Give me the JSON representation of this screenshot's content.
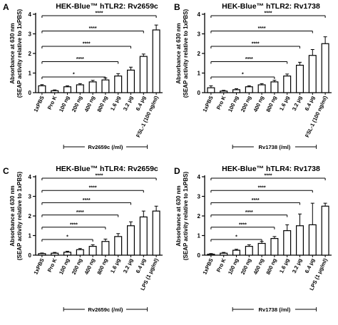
{
  "panel_letters": [
    "A",
    "B",
    "C",
    "D"
  ],
  "chart_data": [
    {
      "type": "bar",
      "title": "HEK-Blue™ hTLR2: Rv2659c",
      "ylabel_line1": "Absorbance at 630 nm",
      "ylabel_line2": "(SEAP activity relative to 1xPBS)",
      "ylim": [
        0,
        4
      ],
      "yticks": [
        0,
        1,
        2,
        3,
        4
      ],
      "categories": [
        "1xPBS",
        "Pro K",
        "100 ng",
        "200 ng",
        "400 ng",
        "800 ng",
        "1.6 μg",
        "3.2 μg",
        "6.4 μg",
        "FSL-1 (100 ng/ml)"
      ],
      "values": [
        0.35,
        0.1,
        0.3,
        0.4,
        0.55,
        0.65,
        0.85,
        1.15,
        1.85,
        3.2
      ],
      "errors": [
        0.06,
        0.04,
        0.05,
        0.06,
        0.08,
        0.1,
        0.12,
        0.15,
        0.12,
        0.25
      ],
      "group_label": "Rv2659c (/ml)",
      "group_range": [
        2,
        8
      ],
      "significance": [
        {
          "to": 5,
          "label": "*"
        },
        {
          "to": 6,
          "label": "****"
        },
        {
          "to": 7,
          "label": "****"
        },
        {
          "to": 8,
          "label": "****"
        },
        {
          "to": 9,
          "label": "****"
        }
      ]
    },
    {
      "type": "bar",
      "title": "HEK-Blue™ hTLR2: Rv1738",
      "ylabel_line1": "Absorbance at 630 nm",
      "ylabel_line2": "(SEAP activity relative to 1xPBS)",
      "ylim": [
        0,
        4
      ],
      "yticks": [
        0,
        1,
        2,
        3,
        4
      ],
      "categories": [
        "1xPBS",
        "Pro K",
        "100 ng",
        "200 ng",
        "400 ng",
        "800 ng",
        "1.6 μg",
        "3.2 μg",
        "6.4 μg",
        "FSL-1 (100 ng/ml)"
      ],
      "values": [
        0.25,
        0.08,
        0.15,
        0.3,
        0.4,
        0.55,
        0.85,
        1.4,
        1.9,
        2.5
      ],
      "errors": [
        0.1,
        0.04,
        0.05,
        0.05,
        0.06,
        0.08,
        0.1,
        0.15,
        0.3,
        0.35
      ],
      "group_label": "Rv1738 (/ml)",
      "group_range": [
        2,
        8
      ],
      "significance": [
        {
          "to": 5,
          "label": "*"
        },
        {
          "to": 6,
          "label": "****"
        },
        {
          "to": 7,
          "label": "****"
        },
        {
          "to": 8,
          "label": "****"
        },
        {
          "to": 9,
          "label": "****"
        }
      ]
    },
    {
      "type": "bar",
      "title": "HEK-Blue™ hTLR4: Rv2659c",
      "ylabel_line1": "Absorbance at 630 nm",
      "ylabel_line2": "(SEAP activity relative to 1xPBS)",
      "ylim": [
        0,
        4
      ],
      "yticks": [
        0,
        1,
        2,
        3,
        4
      ],
      "categories": [
        "1xPBS",
        "Pro K",
        "100 ng",
        "200 ng",
        "400 ng",
        "800 ng",
        "1.6 μg",
        "3.2 μg",
        "6.4 μg",
        "LPS (1 μg/ml)"
      ],
      "values": [
        0.08,
        0.1,
        0.15,
        0.28,
        0.45,
        0.7,
        0.95,
        1.5,
        1.95,
        2.25
      ],
      "errors": [
        0.03,
        0.04,
        0.05,
        0.06,
        0.08,
        0.12,
        0.15,
        0.2,
        0.3,
        0.25
      ],
      "group_label": "Rv2659c (/ml)",
      "group_range": [
        2,
        8
      ],
      "significance": [
        {
          "to": 4,
          "label": "*"
        },
        {
          "to": 5,
          "label": "****"
        },
        {
          "to": 6,
          "label": "****"
        },
        {
          "to": 7,
          "label": "****"
        },
        {
          "to": 8,
          "label": "****"
        },
        {
          "to": 9,
          "label": "****"
        }
      ]
    },
    {
      "type": "bar",
      "title": "HEK-Blue™ hTLR4: Rv1738",
      "ylabel_line1": "Absorbance at 630 nm",
      "ylabel_line2": "(SEAP activity relative to 1xPBS)",
      "ylim": [
        0,
        4
      ],
      "yticks": [
        0,
        1,
        2,
        3,
        4
      ],
      "categories": [
        "1xPBS",
        "Pro K",
        "100 ng",
        "200 ng",
        "400 ng",
        "800 ng",
        "1.6 μg",
        "3.2 μg",
        "6.4 μg",
        "LPS (1 μg/ml)"
      ],
      "values": [
        0.05,
        0.1,
        0.25,
        0.45,
        0.6,
        0.85,
        1.25,
        1.5,
        1.55,
        2.5
      ],
      "errors": [
        0.03,
        0.04,
        0.05,
        0.08,
        0.1,
        0.1,
        0.3,
        0.6,
        1.1,
        0.15
      ],
      "group_label": "Rv1738 (/ml)",
      "group_range": [
        2,
        8
      ],
      "significance": [
        {
          "to": 4,
          "label": "*"
        },
        {
          "to": 5,
          "label": "****"
        },
        {
          "to": 6,
          "label": "****"
        },
        {
          "to": 7,
          "label": "****"
        },
        {
          "to": 8,
          "label": "****"
        },
        {
          "to": 9,
          "label": "****"
        }
      ]
    }
  ]
}
